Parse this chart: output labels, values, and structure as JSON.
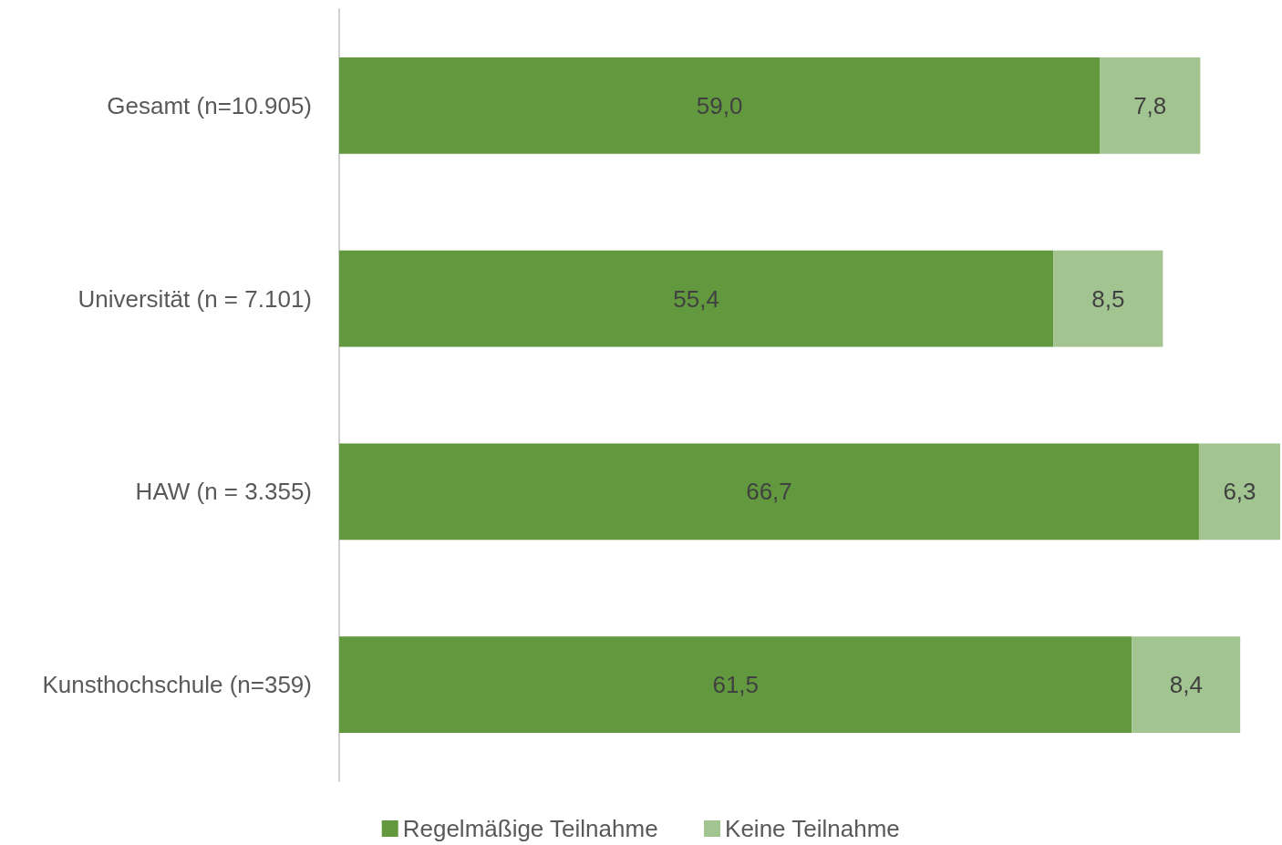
{
  "chart_data": {
    "type": "bar",
    "orientation": "horizontal",
    "stacked": true,
    "categories": [
      "Gesamt (n=10.905)",
      "Universität (n = 7.101)",
      "HAW (n = 3.355)",
      "Kunsthochschule (n=359)"
    ],
    "series": [
      {
        "name": "Regelmäßige Teilnahme",
        "color": "#62993e",
        "values": [
          59.0,
          55.4,
          66.7,
          61.5
        ],
        "value_labels": [
          "59,0",
          "55,4",
          "66,7",
          "61,5"
        ]
      },
      {
        "name": "Keine Teilnahme",
        "color": "#a2c490",
        "values": [
          7.8,
          8.5,
          6.3,
          8.4
        ],
        "value_labels": [
          "7,8",
          "8,5",
          "6,3",
          "8,4"
        ]
      }
    ],
    "legend": "bottom",
    "grid": false,
    "tick_labels": "y"
  }
}
